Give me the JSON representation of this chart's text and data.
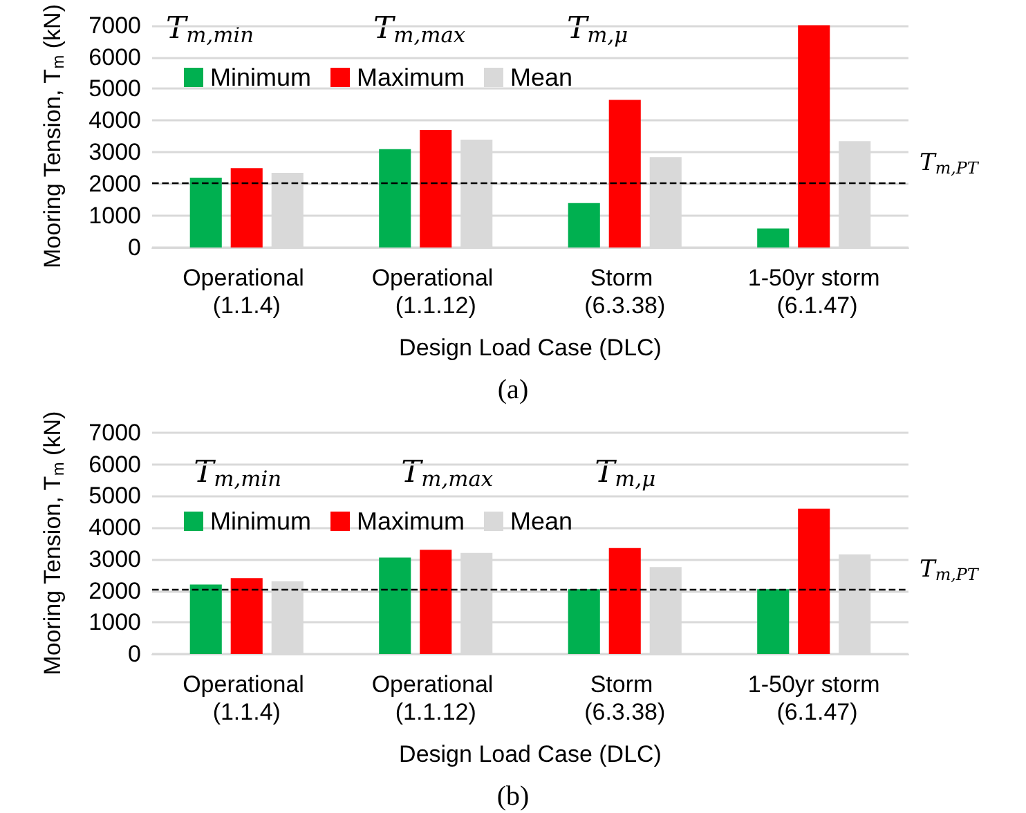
{
  "chart_data": [
    {
      "type": "bar",
      "categories": [
        "Operational (1.1.4)",
        "Operational (1.1.12)",
        "Storm (6.3.38)",
        "1-50yr storm (6.1.47)"
      ],
      "series": [
        {
          "name": "Minimum",
          "color": "#00b050",
          "values": [
            2200,
            3100,
            1400,
            600
          ]
        },
        {
          "name": "Maximum",
          "color": "#ff0000",
          "values": [
            2500,
            3700,
            4650,
            7000
          ]
        },
        {
          "name": "Mean",
          "color": "#d9d9d9",
          "values": [
            2350,
            3400,
            2850,
            3350
          ]
        }
      ],
      "xlabel": "Design Load Case (DLC)",
      "ylabel": "Mooring Tension, T$_{m}$ (kN)",
      "ylim": [
        0,
        7000
      ],
      "yticks": [
        0,
        1000,
        2000,
        3000,
        4000,
        5000,
        6000,
        7000
      ],
      "grid": "y",
      "legend": "top left",
      "ref_lines": [
        {
          "axis": "y",
          "value": 2050,
          "label": "T$_{m,PT}$",
          "line_style": "dashed",
          "color": "#000000"
        }
      ],
      "annotations": [
        "T$_{m,min}$",
        "T$_{m,max}$",
        "T$_{m,μ}$",
        "(a)"
      ]
    },
    {
      "type": "bar",
      "categories": [
        "Operational (1.1.4)",
        "Operational (1.1.12)",
        "Storm (6.3.38)",
        "1-50yr storm (6.1.47)"
      ],
      "series": [
        {
          "name": "Minimum",
          "color": "#00b050",
          "values": [
            2200,
            3050,
            2050,
            2050
          ]
        },
        {
          "name": "Maximum",
          "color": "#ff0000",
          "values": [
            2400,
            3300,
            3350,
            4600
          ]
        },
        {
          "name": "Mean",
          "color": "#d9d9d9",
          "values": [
            2300,
            3200,
            2750,
            3150
          ]
        }
      ],
      "xlabel": "Design Load Case (DLC)",
      "ylabel": "Mooring Tension, T$_{m}$ (kN)",
      "ylim": [
        0,
        7000
      ],
      "yticks": [
        0,
        1000,
        2000,
        3000,
        4000,
        5000,
        6000,
        7000
      ],
      "grid": "y",
      "legend": "top left",
      "ref_lines": [
        {
          "axis": "y",
          "value": 2050,
          "label": "T$_{m,PT}$",
          "line_style": "dashed",
          "color": "#000000"
        }
      ],
      "annotations": [
        "T$_{m,min}$",
        "T$_{m,max}$",
        "T$_{m,μ}$",
        "(b)"
      ]
    }
  ]
}
